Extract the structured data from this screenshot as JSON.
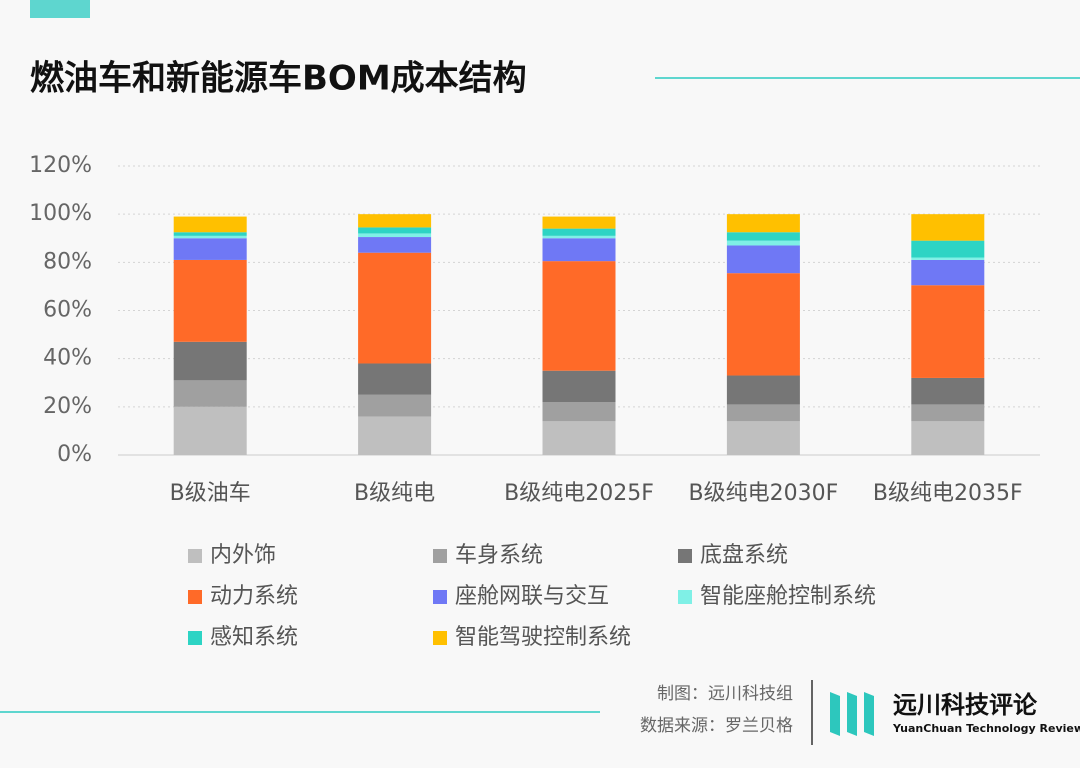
{
  "chart_data": {
    "type": "stacked_bar",
    "title": "燃油车和新能源车BOM成本结构",
    "categories": [
      "B级油车",
      "B级纯电",
      "B级纯电2025F",
      "B级纯电2030F",
      "B级纯电2035F"
    ],
    "series": [
      {
        "name": "内外饰",
        "color": "#bfbfbf",
        "values": [
          20,
          16,
          14,
          14,
          14
        ]
      },
      {
        "name": "车身系统",
        "color": "#a0a0a0",
        "values": [
          11,
          9,
          8,
          7,
          7
        ]
      },
      {
        "name": "底盘系统",
        "color": "#767676",
        "values": [
          16,
          13,
          13,
          12,
          11
        ]
      },
      {
        "name": "动力系统",
        "color": "#ff6a28",
        "values": [
          34,
          46,
          45.5,
          42.5,
          38.5
        ]
      },
      {
        "name": "座舱网联与交互",
        "color": "#6f78f5",
        "values": [
          9,
          6.5,
          9.5,
          11.5,
          10.5
        ]
      },
      {
        "name": "智能座舱控制系统",
        "color": "#7ff0e6",
        "values": [
          1,
          1.5,
          1,
          2,
          1
        ]
      },
      {
        "name": "感知系统",
        "color": "#2dd4c4",
        "values": [
          1.5,
          2.5,
          3,
          3.5,
          7
        ]
      },
      {
        "name": "智能驾驶控制系统",
        "color": "#ffc000",
        "values": [
          6.5,
          5.5,
          5,
          7.5,
          11
        ]
      }
    ],
    "ylim": [
      0,
      120
    ],
    "yticks": [
      {
        "value": 0,
        "label": "0%"
      },
      {
        "value": 20,
        "label": "20%"
      },
      {
        "value": 40,
        "label": "40%"
      },
      {
        "value": 60,
        "label": "60%"
      },
      {
        "value": 80,
        "label": "80%"
      },
      {
        "value": 100,
        "label": "100%"
      },
      {
        "value": 120,
        "label": "120%"
      }
    ],
    "grid": true,
    "legend": "bottom"
  },
  "footer": {
    "credit": "制图：远川科技组",
    "source": "数据来源：罗兰贝格",
    "brand": "远川科技评论",
    "brand_en": "YuanChuan Technology Review"
  }
}
